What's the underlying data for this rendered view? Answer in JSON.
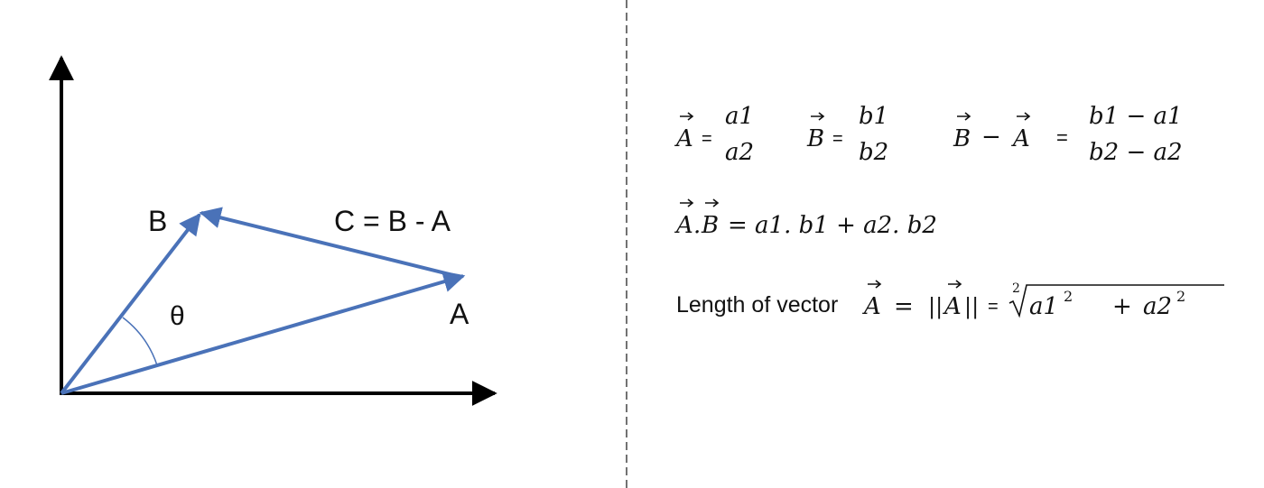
{
  "diagram": {
    "labels": {
      "b": "B",
      "c": "C = B - A",
      "a": "A",
      "theta": "θ"
    }
  },
  "colors": {
    "vector": "#4a72b8",
    "axis": "#000000",
    "divider": "#444444",
    "text": "#111111"
  },
  "formulas": {
    "vec_a": {
      "symbol": "A",
      "eq": "=",
      "top": "a1",
      "bottom": "a2"
    },
    "vec_b": {
      "symbol": "B",
      "eq": "=",
      "top": "b1",
      "bottom": "b2"
    },
    "diff": {
      "symbol_b": "B",
      "minus": "−",
      "symbol_a": "A",
      "eq": "=",
      "top": "b1 − a1",
      "bottom": "b2 − a2"
    },
    "dot": {
      "symbol_a": "A",
      "dot": ".",
      "symbol_b": "B",
      "rhs": "= a1. b1 + a2. b2"
    },
    "length": {
      "prefix": "Length of vector",
      "symbol_a": "A",
      "eq1": "=",
      "bars_left": "||",
      "norm_symbol": "A",
      "bars_right": "||",
      "eq2": "=",
      "root_index": "2",
      "radicand_a": "a1",
      "exp1": "2",
      "plus": "+",
      "radicand_b": "a2",
      "exp2": "2"
    }
  }
}
